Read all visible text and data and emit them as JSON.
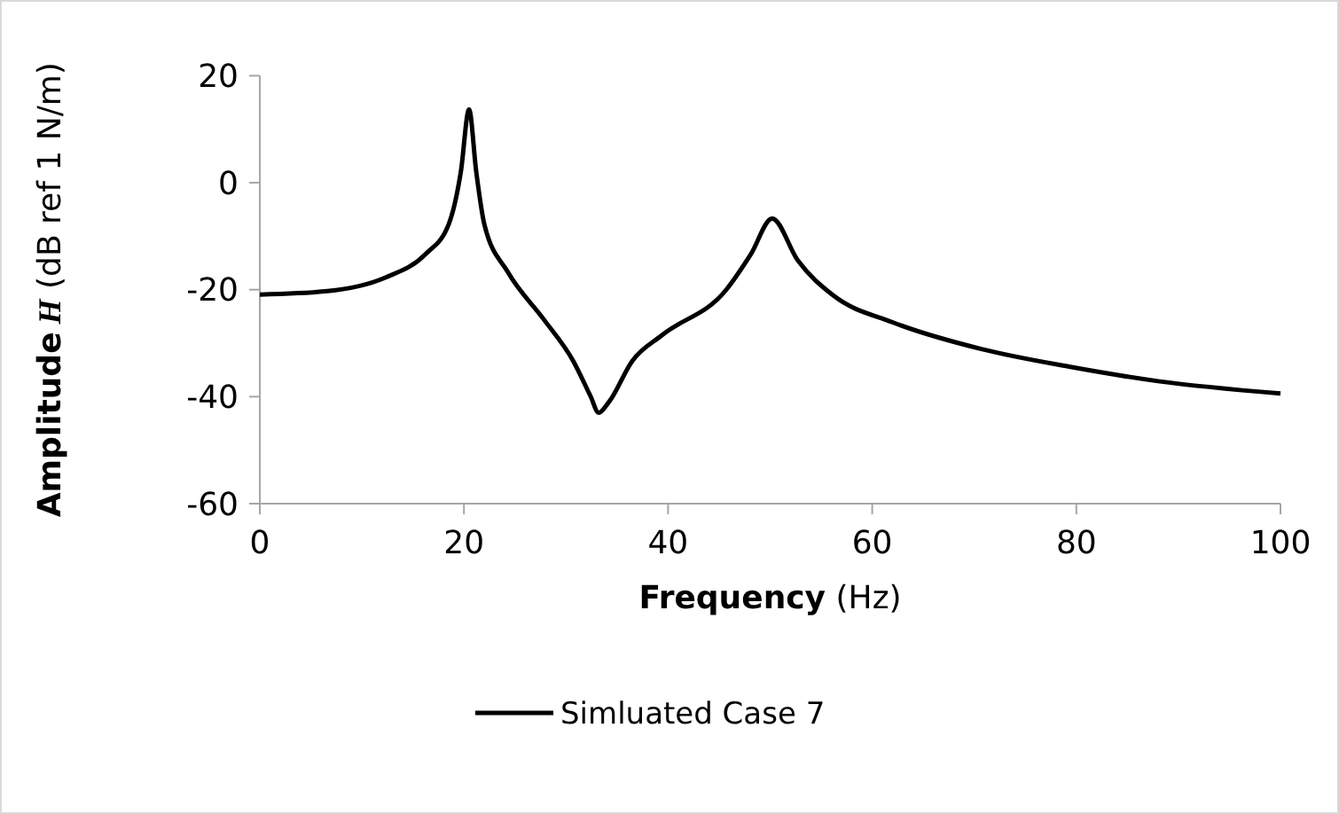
{
  "chart_data": {
    "type": "line",
    "xlabel": "Frequency (Hz)",
    "ylabel": "Amplitude H (dB ref 1 N/m)",
    "xlim": [
      0,
      100
    ],
    "xticks": [
      0,
      20,
      40,
      60,
      80,
      100
    ],
    "ylim": [
      -60,
      20
    ],
    "yticks": [
      -60,
      -40,
      -20,
      0,
      20
    ],
    "grid": false,
    "legend": "bottom",
    "marker": "none",
    "line_style": "solid",
    "series": [
      {
        "name": "Simluated Case 7",
        "color": "#000000",
        "x": [
          0,
          6.4,
          12.2,
          16.2,
          18.5,
          19.7,
          20.5,
          21.2,
          22,
          24.3,
          27.8,
          30.7,
          32.4,
          33.2,
          34.2,
          36.5,
          39.4,
          45.7,
          48.1,
          50.2,
          52.7,
          56.2,
          62,
          70.7,
          79.3,
          88,
          100
        ],
        "values": [
          -20.9,
          -20.3,
          -17.8,
          -13.4,
          -7.8,
          2.1,
          13.7,
          2.1,
          -7.8,
          -16.7,
          -25.5,
          -33.3,
          -39.9,
          -43,
          -41,
          -33.3,
          -28.5,
          -20,
          -13.4,
          -6.7,
          -14.5,
          -21.1,
          -26.1,
          -31.1,
          -34.4,
          -37.1,
          -39.4
        ]
      }
    ]
  }
}
